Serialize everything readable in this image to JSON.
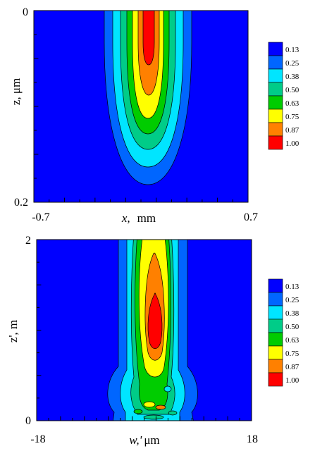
{
  "colors": {
    "background": "#0000ff",
    "levels": [
      "#0000ff",
      "#0066ff",
      "#00e5ff",
      "#00cc88",
      "#00cc00",
      "#ffff00",
      "#ff8000",
      "#ff0000"
    ],
    "contour_line": "#000000"
  },
  "chart_data": [
    {
      "type": "heatmap",
      "subtype": "filled-contour",
      "xlabel_var": "x,",
      "xlabel_unit": "mm",
      "ylabel": "z, μm",
      "x_ticks": [
        "-0.7",
        "0.7"
      ],
      "y_ticks": [
        "0",
        "0.2"
      ],
      "xlim": [
        -0.7,
        0.7
      ],
      "ylim": [
        0,
        0.2
      ],
      "y_inverted": true,
      "legend_levels": [
        "0.13",
        "0.25",
        "0.38",
        "0.50",
        "0.63",
        "0.75",
        "0.87",
        "1.00"
      ],
      "legend_position": "right"
    },
    {
      "type": "heatmap",
      "subtype": "filled-contour",
      "xlabel_var": "w,'",
      "xlabel_unit": "μm",
      "ylabel": "z', m",
      "x_ticks": [
        "-18",
        "18"
      ],
      "y_ticks": [
        "2",
        "0"
      ],
      "xlim": [
        -18,
        18
      ],
      "ylim": [
        0,
        2
      ],
      "y_inverted": false,
      "legend_levels": [
        "0.13",
        "0.25",
        "0.38",
        "0.50",
        "0.63",
        "0.75",
        "0.87",
        "1.00"
      ],
      "legend_position": "right"
    }
  ]
}
